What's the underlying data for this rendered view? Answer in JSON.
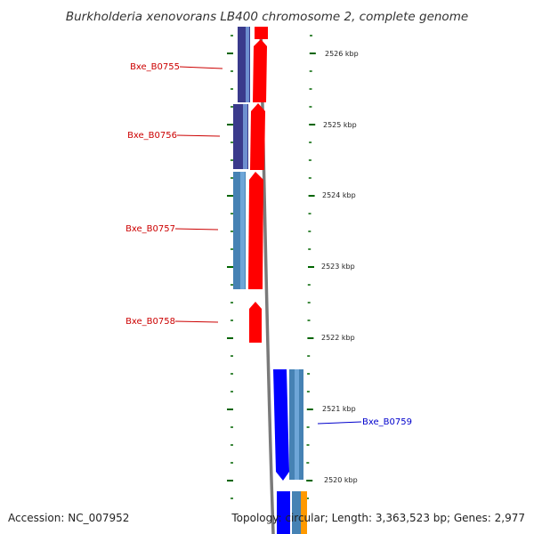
{
  "title": "Burkholderia xenovorans LB400 chromosome 2, complete genome",
  "footer": {
    "accession": "Accession: NC_007952",
    "topology": "Topology: circular; Length: 3,363,523 bp; Genes: 2,977"
  },
  "colors": {
    "forward_gene": "#ff0000",
    "reverse_gene": "#0000ff",
    "dark_cds": "#3a3a8c",
    "light_cds": "#4682b4",
    "orange_feature": "#ff9900",
    "backbone": "#808080",
    "tick_green": "#006400",
    "forward_label": "#cc0000",
    "reverse_label": "#0000cc"
  },
  "scale": {
    "unit": "kbp",
    "labels": [
      "2526 kbp",
      "2525 kbp",
      "2524 kbp",
      "2523 kbp",
      "2522 kbp",
      "2521 kbp",
      "2520 kbp"
    ]
  },
  "genes": [
    {
      "name": "Bxe_B0755",
      "strand": "forward"
    },
    {
      "name": "Bxe_B0756",
      "strand": "forward"
    },
    {
      "name": "Bxe_B0757",
      "strand": "forward"
    },
    {
      "name": "Bxe_B0758",
      "strand": "forward"
    },
    {
      "name": "Bxe_B0759",
      "strand": "reverse"
    }
  ]
}
